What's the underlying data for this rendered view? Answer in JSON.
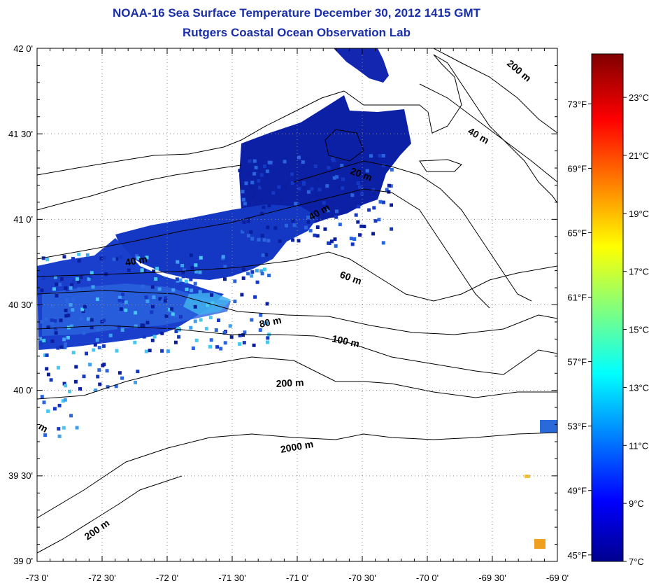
{
  "title": {
    "line1": "NOAA-16 Sea Surface Temperature December 30, 2012 1415 GMT",
    "line2": "Rutgers Coastal Ocean Observation Lab"
  },
  "map": {
    "lon_ticks": [
      "-73 0'",
      "-72 30'",
      "-72 0'",
      "-71 30'",
      "-71 0'",
      "-70 30'",
      "-70 0'",
      "-69 30'",
      "-69 0'"
    ],
    "lat_ticks": [
      "39 0'",
      "39 30'",
      "40 0'",
      "40 30'",
      "41 0'",
      "41 30'",
      "42 0'"
    ],
    "lon_range": [
      -73,
      -69
    ],
    "lat_range": [
      39,
      42
    ],
    "isobath_labels": [
      "20 m",
      "40 m",
      "40 m",
      "40 m",
      "60 m",
      "80 m",
      "100 m",
      "200 m",
      "2000 m",
      "200 m",
      "200 m",
      "m"
    ]
  },
  "colorbar": {
    "celsius_labels": [
      "23°C",
      "21°C",
      "19°C",
      "17°C",
      "15°C",
      "13°C",
      "11°C",
      "9°C",
      "7°C"
    ],
    "fahrenheit_labels": [
      "73°F",
      "69°F",
      "65°F",
      "61°F",
      "57°F",
      "53°F",
      "49°F",
      "45°F"
    ],
    "celsius_values": [
      23,
      21,
      19,
      17,
      15,
      13,
      11,
      9,
      7
    ],
    "fahrenheit_values": [
      73,
      69,
      65,
      61,
      57,
      53,
      49,
      45
    ],
    "range_c": [
      7,
      24.5
    ],
    "colors": {
      "dark_blue": "#00008f",
      "blue": "#0000ff",
      "cyan": "#00ffff",
      "yellow": "#ffff00",
      "red": "#ff0000",
      "dark_red": "#800000"
    }
  },
  "colors": {
    "title": "#1a2fa8",
    "land_outline": "#000000",
    "sst_dark": "#0a1f9e",
    "sst_mid": "#1e4fd8",
    "sst_light": "#3fa0f0"
  }
}
